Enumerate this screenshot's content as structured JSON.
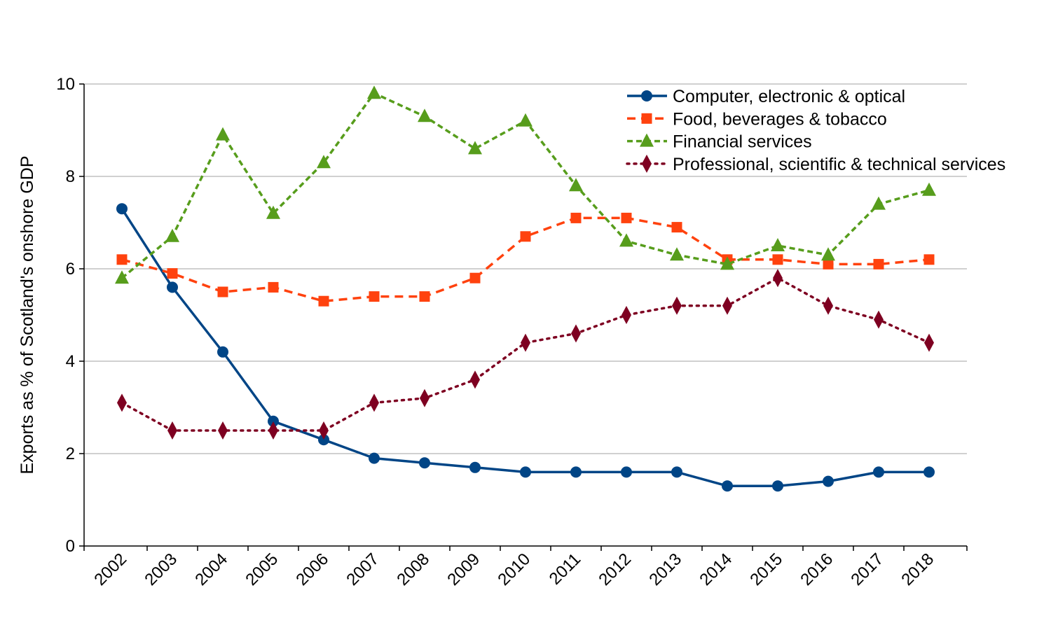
{
  "chart_data": {
    "type": "line",
    "title": "",
    "xlabel": "",
    "ylabel": "Exports as % of Scotland's onshore GDP",
    "ylim": [
      0,
      10
    ],
    "yticks": [
      0,
      2,
      4,
      6,
      8,
      10
    ],
    "grid": true,
    "legend_position": "top-right",
    "categories": [
      "2002",
      "2003",
      "2004",
      "2005",
      "2006",
      "2007",
      "2008",
      "2009",
      "2010",
      "2011",
      "2012",
      "2013",
      "2014",
      "2015",
      "2016",
      "2017",
      "2018"
    ],
    "series": [
      {
        "name": "Computer, electronic & optical",
        "color": "#004586",
        "line_style": "solid",
        "marker": "circle",
        "values": [
          7.3,
          5.6,
          4.2,
          2.7,
          2.3,
          1.9,
          1.8,
          1.7,
          1.6,
          1.6,
          1.6,
          1.6,
          1.3,
          1.3,
          1.4,
          1.6,
          1.6
        ]
      },
      {
        "name": "Food, beverages & tobacco",
        "color": "#ff420e",
        "line_style": "dashed",
        "marker": "square",
        "values": [
          6.2,
          5.9,
          5.5,
          5.6,
          5.3,
          5.4,
          5.4,
          5.8,
          6.7,
          7.1,
          7.1,
          6.9,
          6.2,
          6.2,
          6.1,
          6.1,
          6.2
        ]
      },
      {
        "name": "Financial services",
        "color": "#579d1c",
        "line_style": "short-dashed",
        "marker": "triangle",
        "values": [
          5.8,
          6.7,
          8.9,
          7.2,
          8.3,
          9.8,
          9.3,
          8.6,
          9.2,
          7.8,
          6.6,
          6.3,
          6.1,
          6.5,
          6.3,
          7.4,
          7.7
        ]
      },
      {
        "name": "Professional, scientific & technical services",
        "color": "#7e0021",
        "line_style": "dotted",
        "marker": "diamond",
        "values": [
          3.1,
          2.5,
          2.5,
          2.5,
          2.5,
          3.1,
          3.2,
          3.6,
          4.4,
          4.6,
          5.0,
          5.2,
          5.2,
          5.8,
          5.2,
          4.9,
          4.4
        ]
      }
    ]
  }
}
